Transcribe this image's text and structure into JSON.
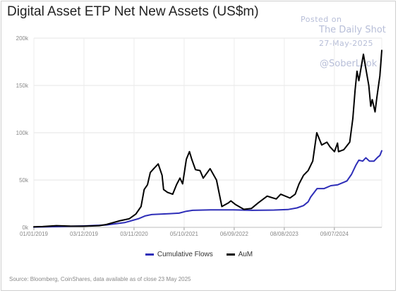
{
  "title": "Digital Asset ETP Net New Assets (US$m)",
  "watermark": {
    "line1": "Posted on",
    "line2": "The Daily Shot",
    "line3": "27-May-2025",
    "line4": "@SoberLook"
  },
  "source": "Source: Bloomberg, CoinShares, data available as of close 23 May 2025",
  "chart_data": {
    "type": "line",
    "title": "Digital Asset ETP Net New Assets (US$m)",
    "xlabel": "",
    "ylabel": "",
    "ylim": [
      0,
      200
    ],
    "xlim": [
      "2019-01-01",
      "2025-05-23"
    ],
    "grid": true,
    "legend_position": "bottom",
    "y_ticks": [
      "0k",
      "50k",
      "100k",
      "150k",
      "200k"
    ],
    "x_ticks": [
      "01/01/2019",
      "03/12/2019",
      "03/11/2020",
      "05/10/2021",
      "06/09/2022",
      "08/08/2023",
      "09/07/2024"
    ],
    "series": [
      {
        "name": "Cumulative Flows",
        "color": "#2e2eb8",
        "points": [
          [
            "2019-01-01",
            0.3
          ],
          [
            "2019-06-01",
            0.8
          ],
          [
            "2019-12-01",
            1.5
          ],
          [
            "2020-05-01",
            2.5
          ],
          [
            "2020-09-01",
            5
          ],
          [
            "2020-12-01",
            9
          ],
          [
            "2021-01-15",
            12
          ],
          [
            "2021-03-01",
            13.5
          ],
          [
            "2021-05-01",
            14
          ],
          [
            "2021-07-01",
            14.5
          ],
          [
            "2021-09-01",
            15
          ],
          [
            "2021-10-20",
            17
          ],
          [
            "2021-12-01",
            18
          ],
          [
            "2022-04-01",
            18.5
          ],
          [
            "2022-09-01",
            18.5
          ],
          [
            "2023-01-01",
            18
          ],
          [
            "2023-06-01",
            18.3
          ],
          [
            "2023-09-01",
            18.8
          ],
          [
            "2023-11-01",
            20.5
          ],
          [
            "2023-12-15",
            23
          ],
          [
            "2024-01-15",
            27
          ],
          [
            "2024-02-01",
            32
          ],
          [
            "2024-03-15",
            41
          ],
          [
            "2024-05-01",
            41
          ],
          [
            "2024-06-15",
            44
          ],
          [
            "2024-08-01",
            45
          ],
          [
            "2024-10-01",
            49
          ],
          [
            "2024-11-01",
            56
          ],
          [
            "2024-12-01",
            66
          ],
          [
            "2024-12-20",
            71
          ],
          [
            "2025-01-15",
            70
          ],
          [
            "2025-02-05",
            73.5
          ],
          [
            "2025-03-01",
            70
          ],
          [
            "2025-04-01",
            70
          ],
          [
            "2025-04-25",
            74
          ],
          [
            "2025-05-10",
            76
          ],
          [
            "2025-05-23",
            81
          ]
        ]
      },
      {
        "name": "AuM",
        "color": "#000000",
        "points": [
          [
            "2019-01-01",
            0.5
          ],
          [
            "2019-03-01",
            0.8
          ],
          [
            "2019-06-01",
            1.8
          ],
          [
            "2019-09-01",
            1.3
          ],
          [
            "2019-12-01",
            1.2
          ],
          [
            "2020-03-15",
            1.8
          ],
          [
            "2020-05-01",
            3
          ],
          [
            "2020-08-01",
            7
          ],
          [
            "2020-10-01",
            9
          ],
          [
            "2020-11-15",
            14
          ],
          [
            "2020-12-20",
            22
          ],
          [
            "2021-01-10",
            40
          ],
          [
            "2021-02-01",
            45
          ],
          [
            "2021-02-20",
            58
          ],
          [
            "2021-03-15",
            62
          ],
          [
            "2021-04-14",
            67
          ],
          [
            "2021-05-10",
            55
          ],
          [
            "2021-05-20",
            40
          ],
          [
            "2021-06-15",
            37
          ],
          [
            "2021-07-20",
            35
          ],
          [
            "2021-08-15",
            45
          ],
          [
            "2021-09-07",
            52
          ],
          [
            "2021-09-25",
            46
          ],
          [
            "2021-10-20",
            72
          ],
          [
            "2021-11-10",
            80
          ],
          [
            "2021-11-25",
            72
          ],
          [
            "2021-12-20",
            61
          ],
          [
            "2022-01-20",
            60
          ],
          [
            "2022-02-10",
            52
          ],
          [
            "2022-03-28",
            62
          ],
          [
            "2022-05-10",
            50
          ],
          [
            "2022-06-15",
            22
          ],
          [
            "2022-07-30",
            26
          ],
          [
            "2022-08-15",
            28
          ],
          [
            "2022-09-15",
            24
          ],
          [
            "2022-11-10",
            19
          ],
          [
            "2022-12-31",
            20
          ],
          [
            "2023-02-15",
            26
          ],
          [
            "2023-04-15",
            33
          ],
          [
            "2023-06-15",
            30
          ],
          [
            "2023-07-15",
            35
          ],
          [
            "2023-09-15",
            31
          ],
          [
            "2023-10-20",
            35
          ],
          [
            "2023-11-15",
            46
          ],
          [
            "2023-12-15",
            55
          ],
          [
            "2024-01-15",
            60
          ],
          [
            "2024-02-15",
            70
          ],
          [
            "2024-03-13",
            100
          ],
          [
            "2024-04-15",
            87
          ],
          [
            "2024-05-20",
            90
          ],
          [
            "2024-06-10",
            85
          ],
          [
            "2024-07-10",
            80
          ],
          [
            "2024-07-30",
            89
          ],
          [
            "2024-08-06",
            80
          ],
          [
            "2024-09-10",
            82
          ],
          [
            "2024-10-20",
            90
          ],
          [
            "2024-11-10",
            115
          ],
          [
            "2024-11-25",
            145
          ],
          [
            "2024-12-08",
            165
          ],
          [
            "2024-12-20",
            155
          ],
          [
            "2025-01-20",
            183
          ],
          [
            "2025-02-05",
            168
          ],
          [
            "2025-02-25",
            150
          ],
          [
            "2025-03-10",
            128
          ],
          [
            "2025-03-20",
            135
          ],
          [
            "2025-04-08",
            122
          ],
          [
            "2025-04-20",
            137
          ],
          [
            "2025-05-01",
            150
          ],
          [
            "2025-05-10",
            160
          ],
          [
            "2025-05-16",
            172
          ],
          [
            "2025-05-23",
            187
          ]
        ]
      }
    ]
  }
}
